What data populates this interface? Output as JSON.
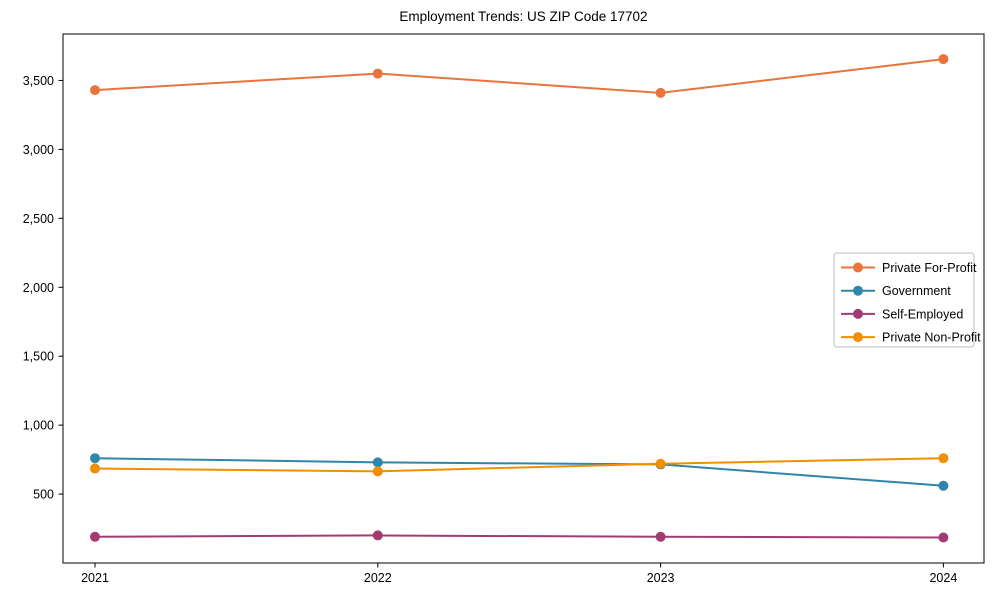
{
  "figure": {
    "title": "Employment Trends: US ZIP Code 17702",
    "background": "#ffffff",
    "axis_color": "#000000",
    "legend_border_color": "#c0c0c0"
  },
  "chart_data": {
    "type": "line",
    "title": "Employment Trends: US ZIP Code 17702",
    "xlabel": "",
    "ylabel": "",
    "x": [
      2021,
      2022,
      2023,
      2024
    ],
    "xtick_labels": [
      "2021",
      "2022",
      "2023",
      "2024"
    ],
    "series": [
      {
        "name": "Private For-Profit",
        "color": "#e8743b",
        "values": [
          3430,
          3550,
          3410,
          3655
        ]
      },
      {
        "name": "Government",
        "color": "#2e86ab",
        "values": [
          760,
          730,
          715,
          560
        ]
      },
      {
        "name": "Self-Employed",
        "color": "#a23b72",
        "values": [
          190,
          200,
          190,
          185
        ]
      },
      {
        "name": "Private Non-Profit",
        "color": "#f18f01",
        "values": [
          685,
          665,
          720,
          760
        ]
      }
    ],
    "ylim": [
      0,
      3837
    ],
    "yticks": [
      500,
      1000,
      1500,
      2000,
      2500,
      3000,
      3500
    ],
    "ytick_labels": [
      "500",
      "1,000",
      "1,500",
      "2,000",
      "2,500",
      "3,000",
      "3,500"
    ],
    "grid": false,
    "marker": "circle",
    "legend_position": "center-right"
  }
}
